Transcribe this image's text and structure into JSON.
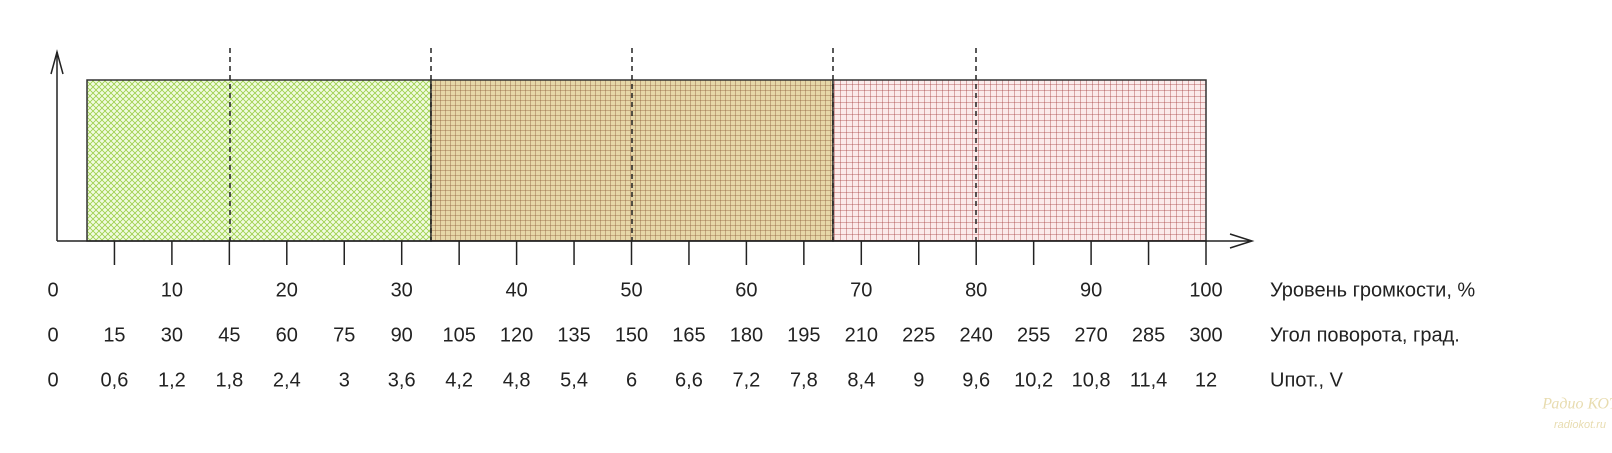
{
  "scale_rows": [
    {
      "title": "Уровень громкости, %",
      "labels": [
        "0",
        "10",
        "20",
        "30",
        "40",
        "50",
        "60",
        "70",
        "80",
        "90",
        "100"
      ]
    },
    {
      "title": "Угол поворота, град.",
      "labels": [
        "0",
        "15",
        "30",
        "45",
        "60",
        "75",
        "90",
        "105",
        "120",
        "135",
        "150",
        "165",
        "180",
        "195",
        "210",
        "225",
        "240",
        "255",
        "270",
        "285",
        "300"
      ]
    },
    {
      "title": "Uпот., V",
      "labels": [
        "0",
        "0,6",
        "1,2",
        "1,8",
        "2,4",
        "3",
        "3,6",
        "4,2",
        "4,8",
        "5,4",
        "6",
        "6,6",
        "7,2",
        "7,8",
        "8,4",
        "9",
        "9,6",
        "10,2",
        "10,8",
        "11,4",
        "12"
      ]
    }
  ],
  "watermark": {
    "title": "Радио КОТ",
    "url": "radiokot.ru"
  }
}
